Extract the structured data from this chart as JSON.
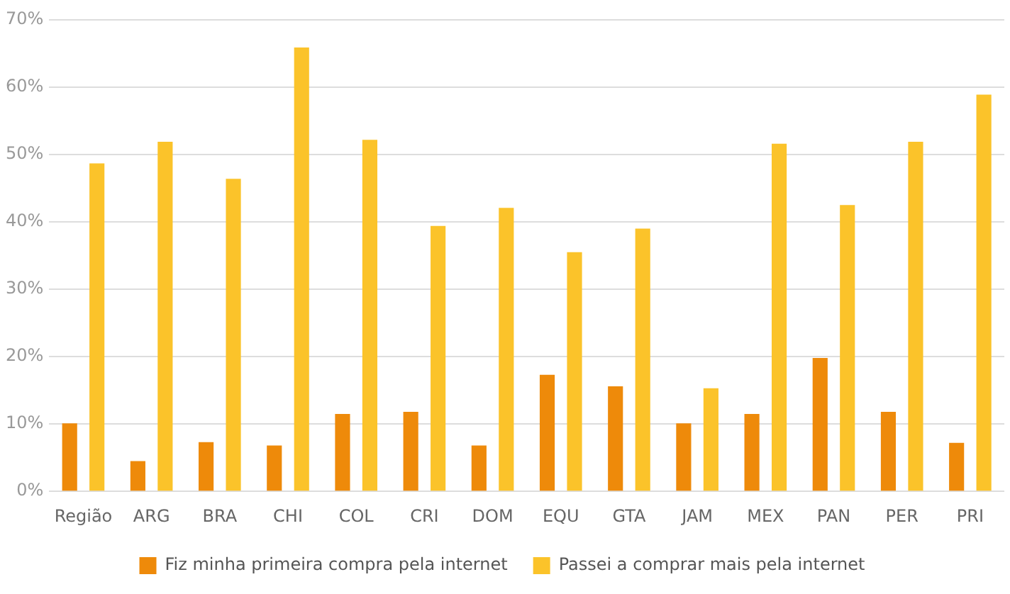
{
  "chart_data": {
    "type": "bar",
    "categories": [
      "Região",
      "ARG",
      "BRA",
      "CHI",
      "COL",
      "CRI",
      "DOM",
      "EQU",
      "GTA",
      "JAM",
      "MEX",
      "PAN",
      "PER",
      "PRI"
    ],
    "series": [
      {
        "name": "Fiz minha primeira compra pela internet",
        "color": "#ee8a0a",
        "values": [
          10.1,
          4.5,
          7.3,
          6.8,
          11.5,
          11.8,
          6.8,
          17.3,
          15.6,
          10.1,
          11.5,
          19.8,
          11.8,
          7.2
        ]
      },
      {
        "name": "Passei a comprar mais pela internet",
        "color": "#fbc32a",
        "values": [
          48.7,
          51.9,
          46.4,
          65.9,
          52.2,
          39.4,
          42.1,
          35.5,
          39.0,
          15.3,
          51.6,
          42.5,
          51.9,
          58.9
        ]
      }
    ],
    "ylim": [
      0,
      70
    ],
    "yticks": [
      {
        "value": 0,
        "label": "0%"
      },
      {
        "value": 10,
        "label": "10%"
      },
      {
        "value": 20,
        "label": "20%"
      },
      {
        "value": 30,
        "label": "30%"
      },
      {
        "value": 40,
        "label": "40%"
      },
      {
        "value": 50,
        "label": "50%"
      },
      {
        "value": 60,
        "label": "60%"
      },
      {
        "value": 70,
        "label": "70%"
      }
    ],
    "grid": "y",
    "legend": "bottom"
  }
}
